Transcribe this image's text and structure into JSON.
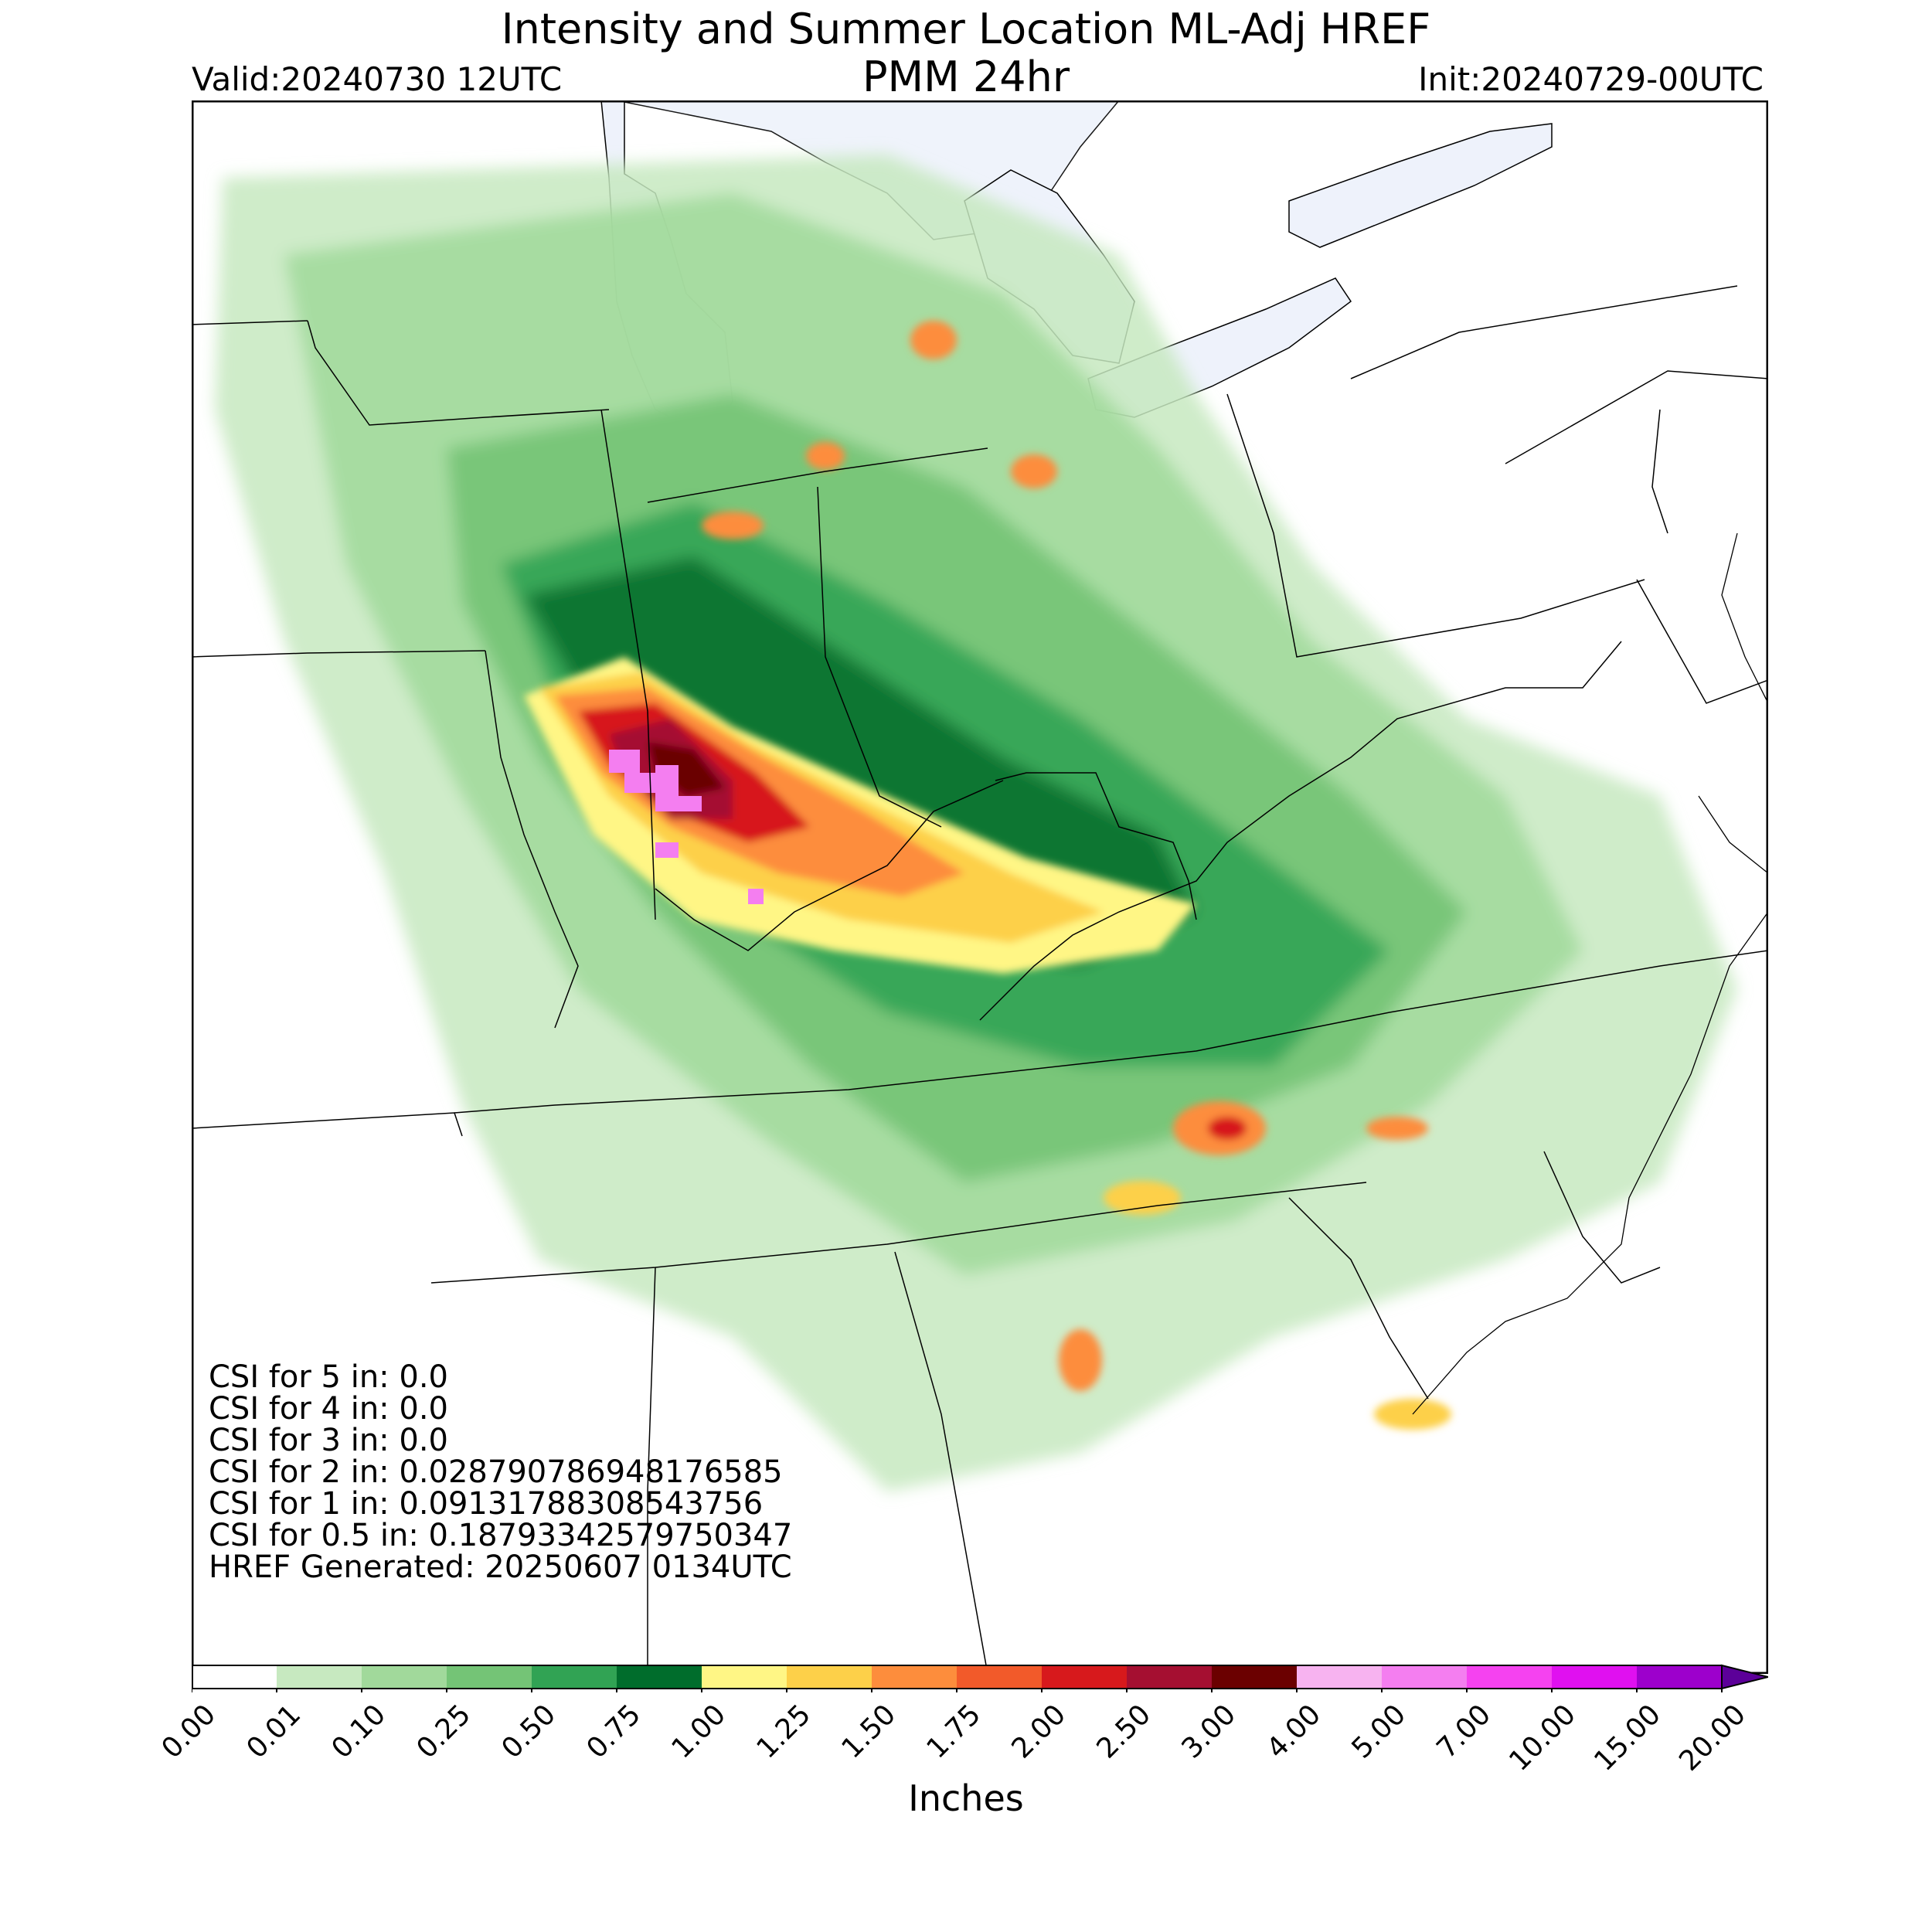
{
  "title": "Intensity and Summer Location ML-Adj HREF",
  "subtitle": "PMM 24hr",
  "valid": "Valid:20240730 12UTC",
  "init": "Init:20240729-00UTC",
  "stats": [
    "CSI for 5 in: 0.0",
    "CSI for 4 in: 0.0",
    "CSI for 3 in: 0.0",
    "CSI for 2 in: 0.028790786948176585",
    "CSI for 1 in: 0.0913178830854375​6",
    "CSI for 0.5 in: 0.18793342579750347",
    "HREF Generated: 20250607 0134UTC"
  ],
  "colorbar": {
    "units": "Inches",
    "ticks": [
      "0.00",
      "0.01",
      "0.10",
      "0.25",
      "0.50",
      "0.75",
      "1.00",
      "1.25",
      "1.50",
      "1.75",
      "2.00",
      "2.50",
      "3.00",
      "4.00",
      "5.00",
      "7.00",
      "10.00",
      "15.00",
      "20.00"
    ],
    "colors": [
      "#ffffff",
      "#c7e9c0",
      "#a1d99b",
      "#74c476",
      "#31a354",
      "#006d2c",
      "#fff685",
      "#fdd049",
      "#fd8d3c",
      "#f25a2a",
      "#d7191c",
      "#a50f31",
      "#6b0000",
      "#f7b3f0",
      "#f47ef0",
      "#f542f0",
      "#e010f0",
      "#9d00cc",
      "#5c0099"
    ]
  },
  "map_colors": {
    "lake": "#eef2fb",
    "border": "#000000"
  }
}
